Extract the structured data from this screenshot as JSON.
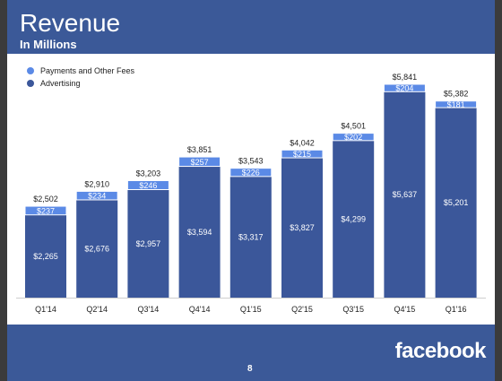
{
  "header": {
    "title": "Revenue",
    "subtitle": "In Millions"
  },
  "footer": {
    "logo": "facebook",
    "page_number": "8"
  },
  "colors": {
    "payments": "#5b8ae6",
    "advertising": "#3b579a",
    "header_bg": "#3b5998"
  },
  "chart_data": {
    "type": "bar",
    "stacked": true,
    "categories": [
      "Q1'14",
      "Q2'14",
      "Q3'14",
      "Q4'14",
      "Q1'15",
      "Q2'15",
      "Q3'15",
      "Q4'15",
      "Q1'16"
    ],
    "series": [
      {
        "name": "Advertising",
        "values": [
          2265,
          2676,
          2957,
          3594,
          3317,
          3827,
          4299,
          5637,
          5201
        ],
        "labels": [
          "$2,265",
          "$2,676",
          "$2,957",
          "$3,594",
          "$3,317",
          "$3,827",
          "$4,299",
          "$5,637",
          "$5,201"
        ]
      },
      {
        "name": "Payments and Other Fees",
        "values": [
          237,
          234,
          246,
          257,
          226,
          215,
          202,
          204,
          181
        ],
        "labels": [
          "$237",
          "$234",
          "$246",
          "$257",
          "$226",
          "$215",
          "$202",
          "$204",
          "$181"
        ]
      }
    ],
    "totals": [
      2502,
      2910,
      3203,
      3851,
      3543,
      4042,
      4501,
      5841,
      5382
    ],
    "total_labels": [
      "$2,502",
      "$2,910",
      "$3,203",
      "$3,851",
      "$3,543",
      "$4,042",
      "$4,501",
      "$5,841",
      "$5,382"
    ],
    "legend": [
      "Payments and Other Fees",
      "Advertising"
    ],
    "legend_position": "top-left"
  }
}
